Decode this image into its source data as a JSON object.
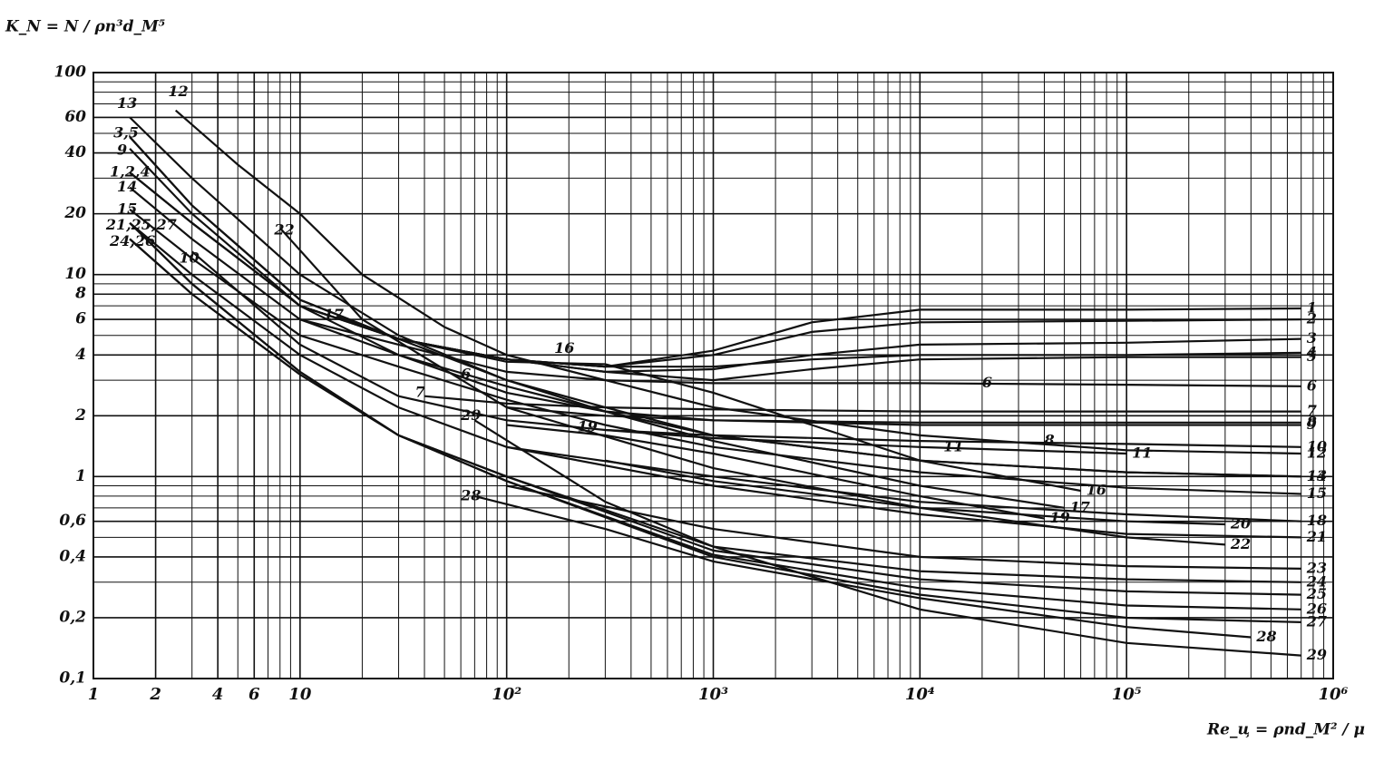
{
  "chart_data": {
    "type": "line",
    "y_label": "K_N = N / ρn³d_M⁵",
    "x_label": "Re_ц = ρnd_M² / μ",
    "xlog": true,
    "ylog": true,
    "grid": true,
    "minor_grid": true,
    "color": "#111111",
    "xlim": [
      1,
      1000000
    ],
    "ylim": [
      0.1,
      100
    ],
    "xticks": [
      1,
      2,
      4,
      6,
      10,
      {
        "value": 100,
        "label": "10²"
      },
      {
        "value": 1000,
        "label": "10³"
      },
      {
        "value": 10000,
        "label": "10⁴"
      },
      {
        "value": 100000,
        "label": "10⁵"
      },
      {
        "value": 1000000,
        "label": "10⁶"
      }
    ],
    "yticks": [
      {
        "value": 0.1,
        "label": "0,1"
      },
      {
        "value": 0.2,
        "label": "0,2"
      },
      {
        "value": 0.4,
        "label": "0,4"
      },
      {
        "value": 0.6,
        "label": "0,6"
      },
      1,
      2,
      4,
      6,
      8,
      10,
      20,
      40,
      60,
      100
    ],
    "series": [
      {
        "name": "1",
        "x": [
          1.5,
          3,
          10,
          30,
          100,
          300,
          1000,
          3000,
          10000,
          100000,
          700000
        ],
        "values": [
          32,
          18,
          7,
          4.8,
          3.8,
          3.5,
          4.2,
          5.8,
          6.7,
          6.7,
          6.8
        ]
      },
      {
        "name": "2",
        "x": [
          1.5,
          3,
          10,
          30,
          100,
          300,
          1000,
          3000,
          10000,
          100000,
          700000
        ],
        "values": [
          32,
          18,
          7,
          4.8,
          3.8,
          3.5,
          4,
          5.2,
          5.8,
          5.9,
          6
        ]
      },
      {
        "name": "3",
        "x": [
          1.5,
          3,
          10,
          30,
          100,
          300,
          1000,
          3000,
          10000,
          100000,
          700000
        ],
        "values": [
          48,
          22,
          7.5,
          4.8,
          3.8,
          3.3,
          3.4,
          4,
          4.5,
          4.6,
          4.8
        ]
      },
      {
        "name": "4",
        "x": [
          1.5,
          3,
          10,
          30,
          100,
          300,
          1000,
          3000,
          10000,
          100000,
          700000
        ],
        "values": [
          32,
          18,
          7,
          4.8,
          3.8,
          3.5,
          3.5,
          3.8,
          4,
          4,
          4.1
        ]
      },
      {
        "name": "5",
        "x": [
          1.5,
          3,
          10,
          30,
          100,
          300,
          1000,
          3000,
          10000,
          100000,
          700000
        ],
        "values": [
          48,
          22,
          7.5,
          4.8,
          3.8,
          3.3,
          3,
          3.4,
          3.8,
          3.9,
          3.9
        ]
      },
      {
        "name": "6",
        "x": [
          10,
          30,
          100,
          300,
          1000,
          10000,
          100000,
          700000
        ],
        "values": [
          6,
          4.5,
          3.3,
          3,
          2.9,
          2.9,
          2.85,
          2.8
        ]
      },
      {
        "name": "7",
        "x": [
          40,
          100,
          300,
          1000,
          10000,
          100000,
          700000
        ],
        "values": [
          2.5,
          2.3,
          2.2,
          2.15,
          2.1,
          2.1,
          2.1
        ]
      },
      {
        "name": "8",
        "x": [
          100,
          300,
          1000,
          10000,
          100000,
          700000
        ],
        "values": [
          2.2,
          2,
          1.9,
          1.85,
          1.85,
          1.85
        ]
      },
      {
        "name": "9",
        "x": [
          1.5,
          3,
          10,
          30,
          100,
          300,
          1000,
          10000,
          100000,
          700000
        ],
        "values": [
          42,
          20,
          7,
          4,
          2.6,
          2.1,
          1.9,
          1.8,
          1.8,
          1.8
        ]
      },
      {
        "name": "10",
        "x": [
          3,
          10,
          30,
          100,
          300,
          1000,
          10000,
          100000,
          700000
        ],
        "values": [
          13,
          4.5,
          2.5,
          1.9,
          1.7,
          1.6,
          1.5,
          1.45,
          1.4
        ]
      },
      {
        "name": "11",
        "x": [
          300,
          1000,
          10000,
          100000
        ],
        "values": [
          1.7,
          1.55,
          1.4,
          1.3
        ]
      },
      {
        "name": "12",
        "x": [
          2.5,
          5,
          10,
          20,
          50,
          100,
          300,
          1000,
          10000,
          100000,
          700000
        ],
        "values": [
          65,
          35,
          20,
          10,
          5.5,
          4,
          3,
          2.2,
          1.6,
          1.35,
          1.3
        ]
      },
      {
        "name": "13",
        "x": [
          1.5,
          3,
          10,
          30,
          100,
          300,
          1000,
          10000,
          100000,
          700000
        ],
        "values": [
          60,
          30,
          10,
          5,
          3,
          2.2,
          1.6,
          1.2,
          1.05,
          1
        ]
      },
      {
        "name": "14",
        "x": [
          1.5,
          3,
          10,
          30,
          100,
          300,
          1000,
          10000,
          100000,
          700000
        ],
        "values": [
          27,
          15,
          6,
          4,
          2.8,
          2.1,
          1.6,
          1.2,
          1.05,
          1
        ]
      },
      {
        "name": "15",
        "x": [
          1.5,
          3,
          10,
          30,
          100,
          300,
          1000,
          10000,
          100000,
          700000
        ],
        "values": [
          21,
          12,
          5,
          3.5,
          2.4,
          1.8,
          1.4,
          1.05,
          0.88,
          0.82
        ]
      },
      {
        "name": "16",
        "x": [
          10,
          30,
          100,
          300,
          1000,
          3000,
          10000,
          60000
        ],
        "values": [
          7,
          4.8,
          3.7,
          3.6,
          2.6,
          1.8,
          1.2,
          0.85
        ]
      },
      {
        "name": "17",
        "x": [
          15,
          30,
          100,
          300,
          1000,
          10000,
          50000
        ],
        "values": [
          6.2,
          4.8,
          3,
          2.1,
          1.5,
          0.9,
          0.7
        ]
      },
      {
        "name": "18",
        "x": [
          100,
          1000,
          10000,
          100000,
          700000
        ],
        "values": [
          1.4,
          1,
          0.75,
          0.65,
          0.6
        ]
      },
      {
        "name": "19",
        "x": [
          100,
          300,
          1000,
          10000,
          40000
        ],
        "values": [
          1.8,
          1.6,
          1.3,
          0.8,
          0.62
        ]
      },
      {
        "name": "20",
        "x": [
          300,
          1000,
          10000,
          100000,
          300000
        ],
        "values": [
          1.2,
          0.95,
          0.7,
          0.6,
          0.58
        ]
      },
      {
        "name": "21",
        "x": [
          1.5,
          3,
          10,
          30,
          100,
          1000,
          10000,
          100000,
          700000
        ],
        "values": [
          18,
          10,
          4,
          2.2,
          1.4,
          0.9,
          0.65,
          0.52,
          0.5
        ]
      },
      {
        "name": "22",
        "x": [
          8,
          20,
          100,
          1000,
          10000,
          100000,
          300000
        ],
        "values": [
          17,
          6,
          2.2,
          1.1,
          0.7,
          0.5,
          0.46
        ]
      },
      {
        "name": "23",
        "x": [
          100,
          1000,
          10000,
          100000,
          700000
        ],
        "values": [
          0.9,
          0.55,
          0.4,
          0.36,
          0.35
        ]
      },
      {
        "name": "24",
        "x": [
          1.5,
          3,
          10,
          30,
          100,
          1000,
          10000,
          100000,
          700000
        ],
        "values": [
          15,
          8,
          3.2,
          1.6,
          1,
          0.45,
          0.34,
          0.31,
          0.3
        ]
      },
      {
        "name": "25",
        "x": [
          1.5,
          3,
          10,
          30,
          100,
          1000,
          10000,
          100000,
          700000
        ],
        "values": [
          18,
          9,
          3.3,
          1.6,
          1,
          0.43,
          0.31,
          0.27,
          0.26
        ]
      },
      {
        "name": "26",
        "x": [
          1.5,
          3,
          10,
          30,
          100,
          1000,
          10000,
          100000,
          700000
        ],
        "values": [
          15,
          8,
          3.2,
          1.6,
          0.95,
          0.41,
          0.28,
          0.23,
          0.22
        ]
      },
      {
        "name": "27",
        "x": [
          1.5,
          3,
          10,
          30,
          100,
          1000,
          10000,
          100000,
          700000
        ],
        "values": [
          18,
          9,
          3.3,
          1.6,
          0.95,
          0.4,
          0.26,
          0.2,
          0.19
        ]
      },
      {
        "name": "28",
        "x": [
          70,
          300,
          1000,
          10000,
          100000,
          400000
        ],
        "values": [
          0.8,
          0.55,
          0.38,
          0.25,
          0.18,
          0.16
        ]
      },
      {
        "name": "29",
        "x": [
          70,
          300,
          1000,
          10000,
          100000,
          700000
        ],
        "values": [
          1.9,
          0.75,
          0.45,
          0.22,
          0.15,
          0.13
        ]
      }
    ],
    "annotations": [
      {
        "text": "13",
        "x": 1.3,
        "y": 70
      },
      {
        "text": "12",
        "x": 2.3,
        "y": 80
      },
      {
        "text": "3,5",
        "x": 1.25,
        "y": 50
      },
      {
        "text": "9",
        "x": 1.3,
        "y": 41
      },
      {
        "text": "1,2,4",
        "x": 1.2,
        "y": 32
      },
      {
        "text": "14",
        "x": 1.3,
        "y": 27
      },
      {
        "text": "15",
        "x": 1.3,
        "y": 21
      },
      {
        "text": "21,25,27",
        "x": 1.15,
        "y": 17.5
      },
      {
        "text": "24,26",
        "x": 1.2,
        "y": 14.5
      },
      {
        "text": "10",
        "x": 2.6,
        "y": 12
      },
      {
        "text": "22",
        "x": 7.5,
        "y": 16.5
      },
      {
        "text": "17",
        "x": 13,
        "y": 6.3
      },
      {
        "text": "16",
        "x": 170,
        "y": 4.3
      },
      {
        "text": "6",
        "x": 60,
        "y": 3.2
      },
      {
        "text": "7",
        "x": 36,
        "y": 2.6
      },
      {
        "text": "29",
        "x": 60,
        "y": 2
      },
      {
        "text": "19",
        "x": 220,
        "y": 1.75
      },
      {
        "text": "28",
        "x": 60,
        "y": 0.8
      },
      {
        "text": "11",
        "x": 13000,
        "y": 1.4
      },
      {
        "text": "8",
        "x": 40000,
        "y": 1.5
      },
      {
        "text": "6",
        "x": 20000,
        "y": 2.9
      }
    ]
  }
}
